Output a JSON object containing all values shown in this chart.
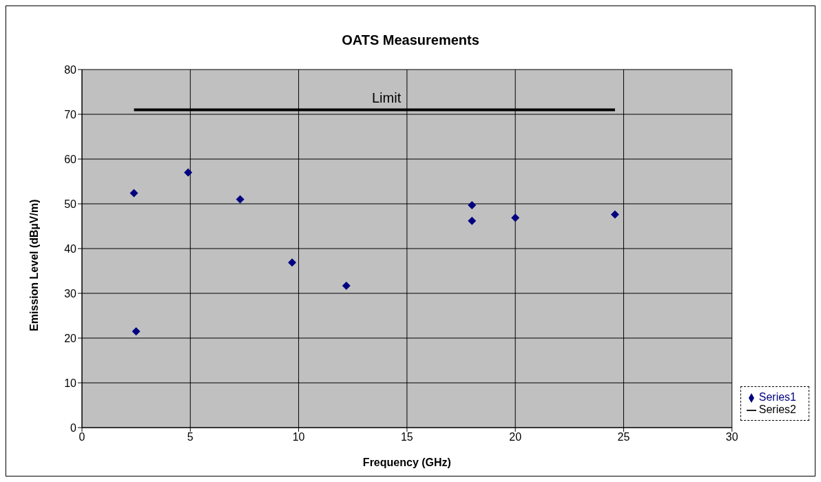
{
  "chart_data": {
    "type": "scatter",
    "title": "OATS Measurements",
    "xlabel": "Frequency (GHz)",
    "ylabel": "Emission Level (dBµV/m)",
    "xlim": [
      0,
      30
    ],
    "xticks": [
      0,
      5,
      10,
      15,
      20,
      25,
      30
    ],
    "ylim": [
      0,
      80
    ],
    "yticks": [
      0,
      10,
      20,
      30,
      40,
      50,
      60,
      70,
      80
    ],
    "grid": true,
    "legend": "bottom right",
    "annotations": [
      "Limit"
    ],
    "series": [
      {
        "name": "Series1",
        "color": "#000080",
        "marker": "diamond",
        "x": [
          2.4,
          2.5,
          4.9,
          7.3,
          9.7,
          12.2,
          18,
          18,
          20,
          24.6
        ],
        "values": [
          52.4,
          21.5,
          57.0,
          51.0,
          36.9,
          31.7,
          49.7,
          46.2,
          46.9,
          47.6
        ]
      },
      {
        "name": "Series2",
        "type": "line",
        "color": "#000000",
        "marker": "none",
        "x": [
          2.4,
          24.6
        ],
        "values": [
          71,
          71
        ]
      }
    ]
  }
}
